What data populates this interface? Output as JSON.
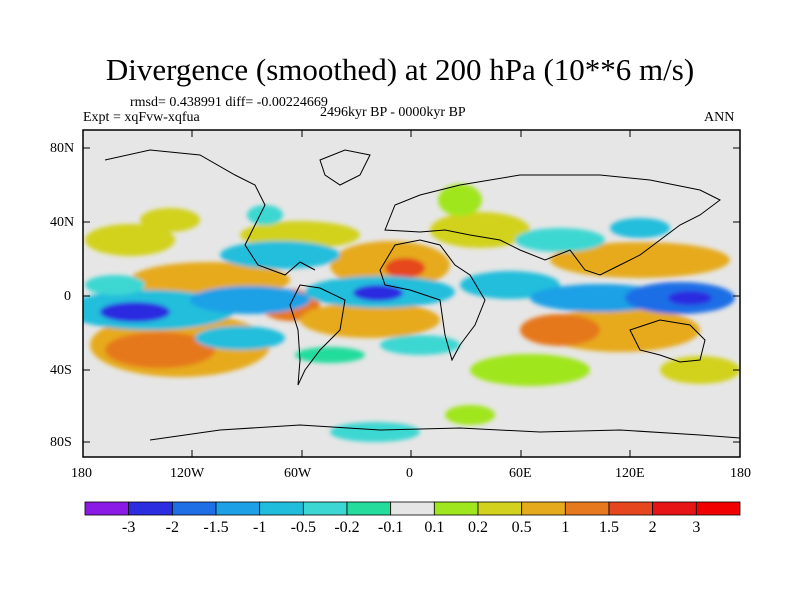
{
  "title": "Divergence (smoothed) at 200 hPa (10**6 m/s)",
  "stats": "rmsd= 0.438991 diff= -0.00224669",
  "experiment": "Expt = xqFvw-xqfua",
  "period": "2496kyr BP - 0000kyr BP",
  "season": "ANN",
  "lat_labels": [
    "80N",
    "40N",
    "0",
    "40S",
    "80S"
  ],
  "lon_labels": [
    "180",
    "120W",
    "60W",
    "0",
    "60E",
    "120E",
    "180"
  ],
  "colorbar": {
    "labels": [
      "-3",
      "-2",
      "-1.5",
      "-1",
      "-0.5",
      "-0.2",
      "-0.1",
      "0.1",
      "0.2",
      "0.5",
      "1",
      "1.5",
      "2",
      "3"
    ],
    "colors": [
      "#8c1ae6",
      "#2c2ce0",
      "#1e6ee6",
      "#1ea0e6",
      "#20bedc",
      "#3cd7d2",
      "#24dc9c",
      "#e6e6e6",
      "#a0e61e",
      "#d2d21e",
      "#e6aa1e",
      "#e6781e",
      "#e6461e",
      "#e61414",
      "#f00000"
    ]
  },
  "colors": {
    "ocean_neutral": "#e6e6e6",
    "frame": "#000000"
  }
}
